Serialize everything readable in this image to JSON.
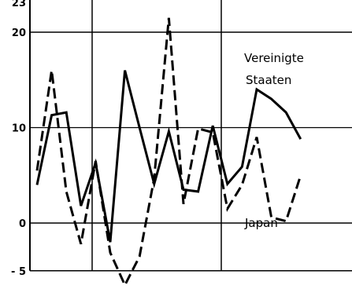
{
  "chart_data": {
    "type": "line",
    "title": "",
    "xlabel": "",
    "ylabel": "",
    "ylim": [
      -5,
      23
    ],
    "y_ticks": [
      {
        "value": 23,
        "label": "23"
      },
      {
        "value": 20,
        "label": "20"
      },
      {
        "value": 10,
        "label": "10"
      },
      {
        "value": 0,
        "label": "0"
      },
      {
        "value": -5,
        "label": "- 5"
      }
    ],
    "grid": true,
    "x": [
      1,
      2,
      3,
      4,
      5,
      6,
      7,
      8,
      9,
      10,
      11,
      12,
      13,
      14,
      15,
      16,
      17,
      18,
      19,
      20
    ],
    "series": [
      {
        "name": "Vereinigte Staaten",
        "style": "solid",
        "values": [
          4.0,
          11.3,
          11.6,
          1.8,
          6.3,
          -2.0,
          16.0,
          10.0,
          4.1,
          9.6,
          3.5,
          3.3,
          10.2,
          4.1,
          5.9,
          14.0,
          13.0,
          11.6,
          8.8,
          null
        ]
      },
      {
        "name": "Japan",
        "style": "dashed",
        "values": [
          5.5,
          16.0,
          3.3,
          -2.2,
          6.5,
          -3.1,
          -6.5,
          -3.5,
          4.7,
          21.5,
          2.0,
          9.9,
          9.5,
          1.5,
          4.0,
          9.0,
          0.6,
          0.2,
          5.0,
          null
        ]
      }
    ],
    "labels": {
      "usa_line1": "Vereinigte",
      "usa_line2": "Staaten",
      "japan": "Japan"
    }
  }
}
